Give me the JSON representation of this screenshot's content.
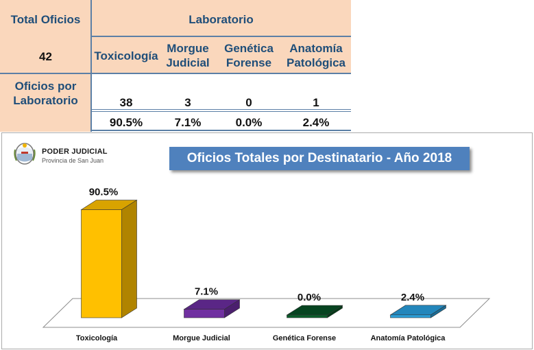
{
  "table": {
    "total_label": "Total Oficios",
    "total_value": "42",
    "group_header": "Laboratorio",
    "row_label": "Oficios por Laboratorio",
    "columns": [
      {
        "line1": "Toxicología",
        "line2": "",
        "count": "38",
        "pct": "90.5%"
      },
      {
        "line1": "Morgue",
        "line2": "Judicial",
        "count": "3",
        "pct": "7.1%"
      },
      {
        "line1": "Genética",
        "line2": "Forense",
        "count": "0",
        "pct": "0.0%"
      },
      {
        "line1": "Anatomía",
        "line2": "Patológica",
        "count": "1",
        "pct": "2.4%"
      }
    ]
  },
  "logo": {
    "line1": "PODER JUDICIAL",
    "line2": "Provincia de San Juan",
    "icon": "coat-of-arms-icon"
  },
  "chart_data": {
    "type": "bar",
    "title": "Oficios Totales por Destinatario - Año 2018",
    "categories": [
      "Toxicología",
      "Morgue Judicial",
      "Genética Forense",
      "Anatomía Patológica"
    ],
    "values": [
      90.5,
      7.1,
      0.0,
      2.4
    ],
    "data_labels": [
      "90.5%",
      "7.1%",
      "0.0%",
      "2.4%"
    ],
    "ylim": [
      0,
      100
    ],
    "grid": false,
    "legend": "none",
    "colors": [
      "#ffc000",
      "#7030a0",
      "#0b5e2b",
      "#2c9fd8"
    ],
    "side_colors": [
      "#b08400",
      "#4b1f6e",
      "#053a19",
      "#1b6d96"
    ],
    "top_colors": [
      "#d8a300",
      "#5a2686",
      "#064420",
      "#2386bb"
    ]
  }
}
